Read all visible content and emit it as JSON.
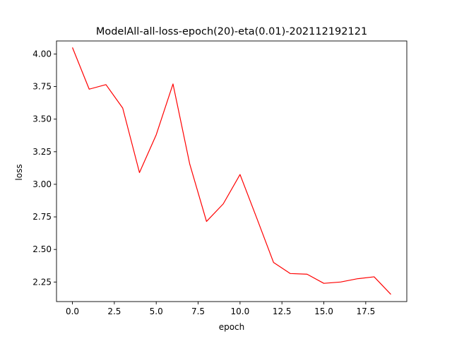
{
  "chart_data": {
    "type": "line",
    "title": "ModelAll-all-loss-epoch(20)-eta(0.01)-202112192121",
    "xlabel": "epoch",
    "ylabel": "loss",
    "xlim": [
      -0.95,
      19.95
    ],
    "ylim": [
      2.1,
      4.1
    ],
    "xticks": [
      0.0,
      2.5,
      5.0,
      7.5,
      10.0,
      12.5,
      15.0,
      17.5
    ],
    "xtick_labels": [
      "0.0",
      "2.5",
      "5.0",
      "7.5",
      "10.0",
      "12.5",
      "15.0",
      "17.5"
    ],
    "yticks": [
      2.25,
      2.5,
      2.75,
      3.0,
      3.25,
      3.5,
      3.75,
      4.0
    ],
    "ytick_labels": [
      "2.25",
      "2.50",
      "2.75",
      "3.00",
      "3.25",
      "3.50",
      "3.75",
      "4.00"
    ],
    "grid": false,
    "series": [
      {
        "color": "#ff0000",
        "x": [
          0,
          1,
          2,
          3,
          4,
          5,
          6,
          7,
          8,
          9,
          10,
          11,
          12,
          13,
          14,
          15,
          16,
          17,
          18,
          19
        ],
        "values": [
          4.05,
          3.73,
          3.765,
          3.585,
          3.09,
          3.38,
          3.77,
          3.155,
          2.715,
          2.85,
          3.075,
          2.74,
          2.4,
          2.315,
          2.31,
          2.24,
          2.25,
          2.275,
          2.29,
          2.155
        ]
      }
    ]
  }
}
